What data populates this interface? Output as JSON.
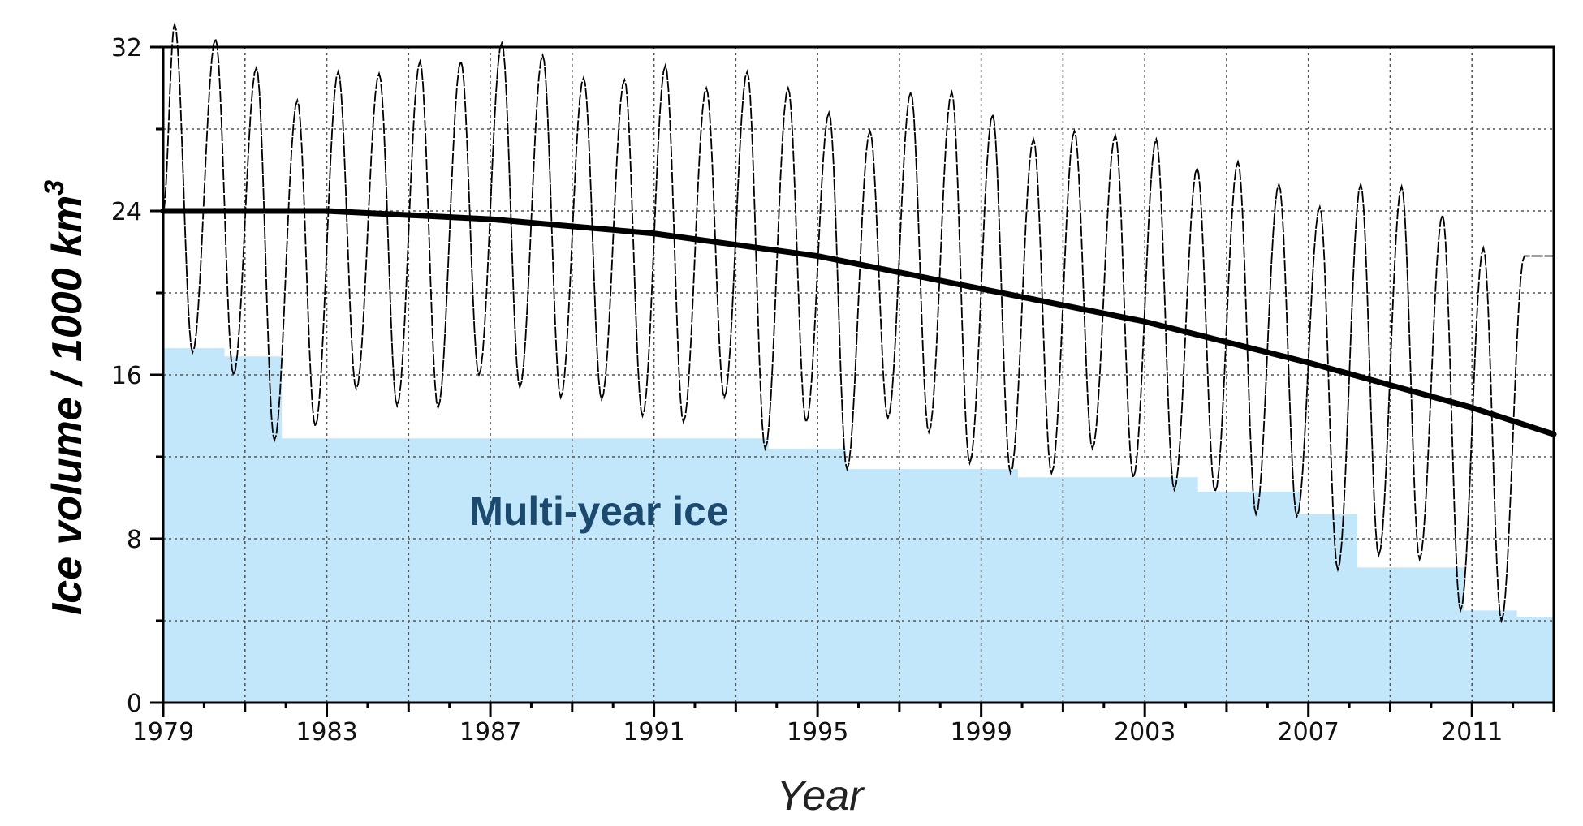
{
  "chart_data": {
    "type": "line",
    "title": "",
    "xlabel": "Year",
    "ylabel": "Ice volume / 1000 km",
    "ylabel_superscript": "3",
    "xlim": [
      1979,
      2013
    ],
    "ylim": [
      0,
      32
    ],
    "grid": true,
    "x_ticks": [
      1979,
      1983,
      1987,
      1991,
      1995,
      1999,
      2003,
      2007,
      2011
    ],
    "x_tick_labels": [
      "1979",
      "1983",
      "1987",
      "1991",
      "1995",
      "1999",
      "2003",
      "2007",
      "2011"
    ],
    "y_ticks": [
      0,
      8,
      16,
      24,
      32
    ],
    "y_tick_labels": [
      "0",
      "8",
      "16",
      "24",
      "32"
    ],
    "annotation": "Multi-year ice",
    "colors": {
      "multi_year_fill": "#c2e6fa",
      "line": "#000000",
      "grid": "#555555",
      "annotation": "#1b4a6e"
    },
    "series": [
      {
        "kind": "area-step",
        "x": [
          1979,
          1980.5,
          1981.9,
          1993.8,
          1995.7,
          1999.9,
          2004.3,
          2006.8,
          2008.2,
          2010.8,
          2012.1,
          2013
        ],
        "values": [
          17.3,
          16.9,
          12.9,
          12.4,
          11.4,
          11.0,
          10.3,
          9.2,
          6.6,
          4.5,
          4.2,
          4.2
        ]
      },
      {
        "kind": "trend",
        "x": [
          1979,
          1983,
          1987,
          1991,
          1995,
          1999,
          2003,
          2007,
          2011,
          2013
        ],
        "values": [
          24.0,
          24.0,
          23.6,
          22.9,
          21.8,
          20.2,
          18.6,
          16.6,
          14.4,
          13.1
        ]
      },
      {
        "kind": "seasonal",
        "years": [
          1979,
          1980,
          1981,
          1982,
          1983,
          1984,
          1985,
          1986,
          1987,
          1988,
          1989,
          1990,
          1991,
          1992,
          1993,
          1994,
          1995,
          1996,
          1997,
          1998,
          1999,
          2000,
          2001,
          2002,
          2003,
          2004,
          2005,
          2006,
          2007,
          2008,
          2009,
          2010,
          2011,
          2012
        ],
        "max": [
          33.1,
          32.4,
          31.0,
          29.4,
          30.8,
          30.7,
          31.3,
          31.3,
          32.2,
          31.6,
          30.5,
          30.4,
          31.1,
          30.0,
          30.8,
          30.0,
          28.8,
          27.9,
          29.8,
          29.8,
          28.7,
          27.5,
          27.9,
          27.7,
          27.5,
          26.1,
          26.4,
          25.3,
          24.2,
          25.3,
          25.2,
          23.8,
          22.2,
          21.8
        ],
        "min": [
          17.1,
          16.0,
          12.8,
          13.5,
          15.3,
          14.5,
          14.4,
          16.0,
          15.4,
          14.9,
          14.8,
          14.0,
          13.7,
          14.9,
          12.4,
          13.7,
          11.4,
          13.9,
          13.2,
          11.7,
          11.2,
          11.2,
          12.4,
          11.0,
          10.4,
          10.3,
          9.2,
          9.1,
          6.5,
          7.2,
          7.0,
          4.5,
          4.0,
          null
        ],
        "end_value": 21.8
      }
    ]
  }
}
